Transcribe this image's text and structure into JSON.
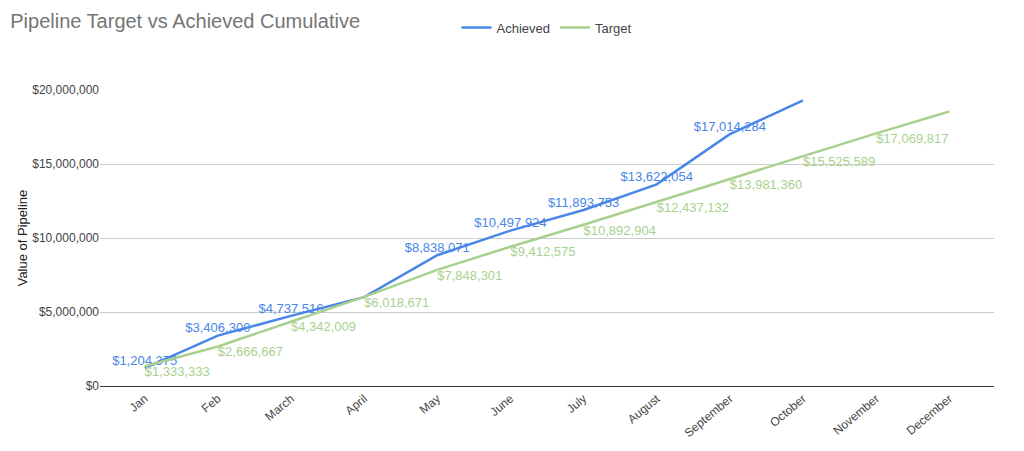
{
  "chart_data": {
    "type": "line",
    "title": "Pipeline Target vs Achieved Cumulative",
    "y_label": "Value of Pipeline",
    "categories": [
      "Jan",
      "Feb",
      "March",
      "April",
      "May",
      "June",
      "July",
      "August",
      "September",
      "October",
      "November",
      "December"
    ],
    "series": [
      {
        "name": "Achieved",
        "color": "#4a86e8",
        "values": [
          1204375,
          3406300,
          4737516,
          6000000,
          8838071,
          10497924,
          11893753,
          13622054,
          17014284,
          19300000,
          null,
          null
        ],
        "value_labels": [
          "$1,204,375",
          "$3,406,300",
          "$4,737,516",
          null,
          "$8,838,071",
          "$10,497,924",
          "$11,893,753",
          "$13,622,054",
          "$17,014,284",
          null,
          null,
          null
        ]
      },
      {
        "name": "Target",
        "color": "#a9d18e",
        "values": [
          1333333,
          2666667,
          4342009,
          6018671,
          7848301,
          9412575,
          10892904,
          12437132,
          13981360,
          15525589,
          17069817,
          18550000
        ],
        "value_labels": [
          "$1,333,333",
          "$2,666,667",
          "$4,342,009",
          "$6,018,671",
          "$7,848,301",
          "$9,412,575",
          "$10,892,904",
          "$12,437,132",
          "$13,981,360",
          "$15,525,589",
          "$17,069,817",
          null
        ]
      }
    ],
    "ylim": [
      0,
      20000000
    ],
    "yticks": [
      {
        "value": 0,
        "label": "$0"
      },
      {
        "value": 5000000,
        "label": "$5,000,000"
      },
      {
        "value": 10000000,
        "label": "$10,000,000"
      },
      {
        "value": 15000000,
        "label": "$15,000,000"
      },
      {
        "value": 20000000,
        "label": "$20,000,000"
      }
    ],
    "grid": true,
    "legend": "top",
    "data_labels": true
  }
}
